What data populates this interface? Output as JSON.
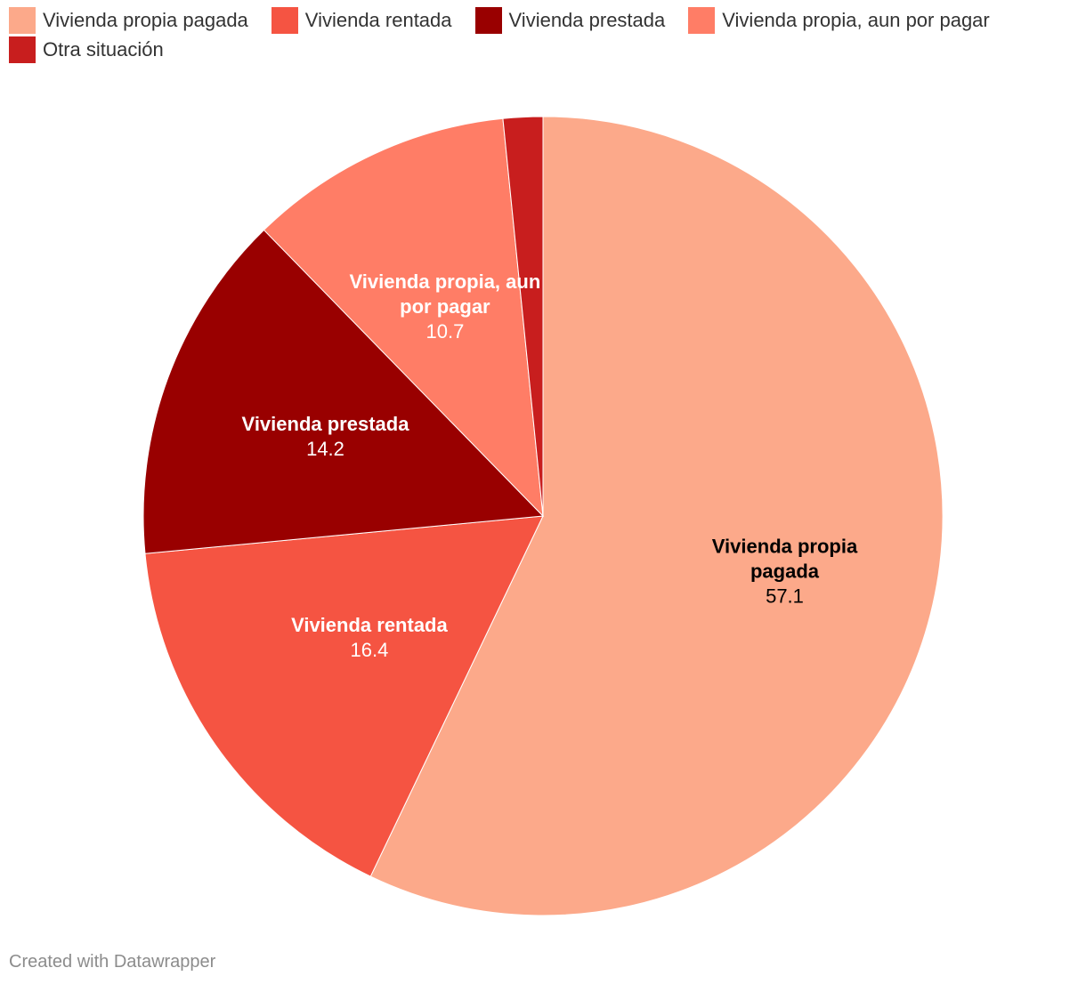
{
  "chart_data": {
    "type": "pie",
    "slices": [
      {
        "label": "Vivienda propia pagada",
        "value": 57.1,
        "color": "#fca98a",
        "label_color": "#000000"
      },
      {
        "label": "Vivienda rentada",
        "value": 16.4,
        "color": "#f55442",
        "label_color": "#ffffff"
      },
      {
        "label": "Vivienda prestada",
        "value": 14.2,
        "color": "#990000",
        "label_color": "#ffffff"
      },
      {
        "label": "Vivienda propia, aun por pagar",
        "value": 10.7,
        "color": "#ff7d66",
        "label_color": "#ffffff"
      },
      {
        "label": "Otra situación",
        "value": 1.6,
        "color": "#c81e1e",
        "label_color": "#ffffff"
      }
    ],
    "legend_position": "top"
  },
  "footer": {
    "credit": "Created with Datawrapper"
  }
}
